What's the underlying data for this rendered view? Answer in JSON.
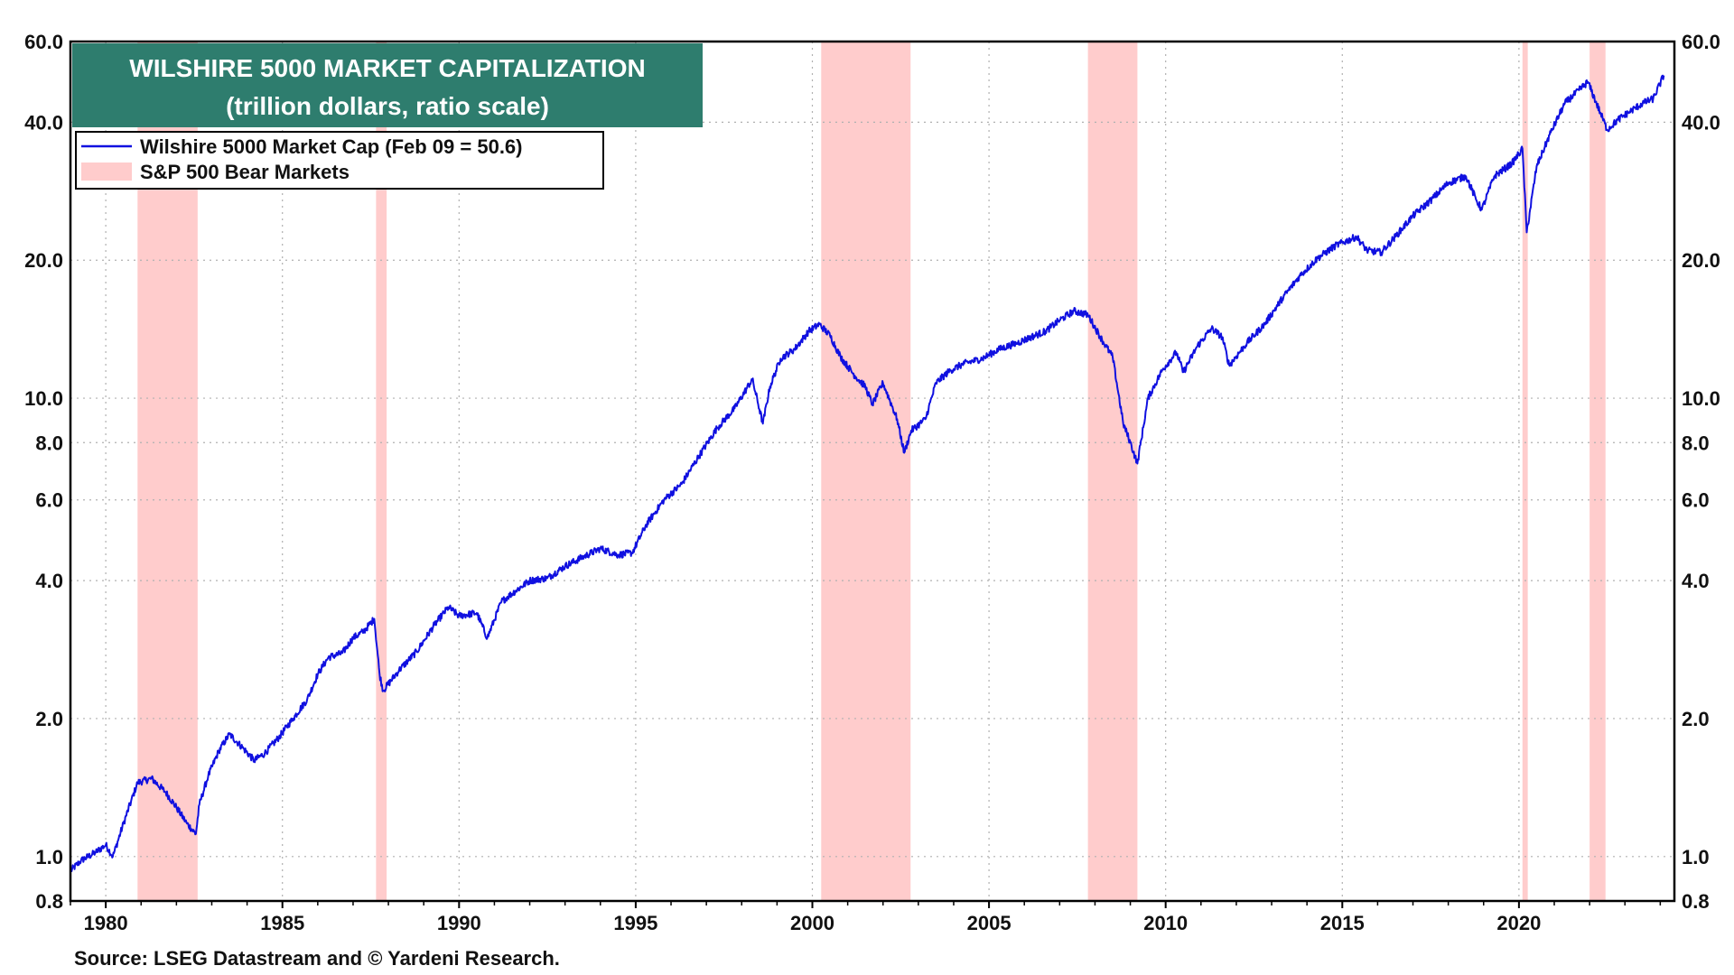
{
  "source": "Source: LSEG Datastream and © Yardeni Research.",
  "colors": {
    "line": "#1010e0",
    "bear": "#ffcccc",
    "title_bg": "#2e7d6e",
    "grid": "#b0b0b0"
  },
  "chart_data": {
    "type": "line",
    "title": "WILSHIRE 5000 MARKET CAPITALIZATION",
    "subtitle": "(trillion dollars, ratio scale)",
    "xlabel": "",
    "ylabel": "",
    "yscale": "log",
    "xlim": [
      1979.0,
      2024.4
    ],
    "ylim": [
      0.8,
      60.0
    ],
    "x_ticks": [
      "1980",
      "1985",
      "1990",
      "1995",
      "2000",
      "2005",
      "2010",
      "2015",
      "2020"
    ],
    "y_ticks": [
      {
        "value": 0.8,
        "label": "0.8"
      },
      {
        "value": 1.0,
        "label": "1.0"
      },
      {
        "value": 2.0,
        "label": "2.0"
      },
      {
        "value": 4.0,
        "label": "4.0"
      },
      {
        "value": 6.0,
        "label": "6.0"
      },
      {
        "value": 8.0,
        "label": "8.0"
      },
      {
        "value": 10.0,
        "label": "10.0"
      },
      {
        "value": 20.0,
        "label": "20.0"
      },
      {
        "value": 40.0,
        "label": "40.0"
      },
      {
        "value": 60.0,
        "label": "60.0"
      }
    ],
    "legend": {
      "placement": "top-left",
      "entries": [
        {
          "label": "Wilshire 5000 Market Cap  (Feb 09 = 50.6)",
          "kind": "line"
        },
        {
          "label": "S&P 500 Bear Markets",
          "kind": "band"
        }
      ]
    },
    "bear_markets": [
      [
        1980.9,
        1982.6
      ],
      [
        1987.65,
        1987.95
      ],
      [
        2000.25,
        2002.78
      ],
      [
        2007.8,
        2009.2
      ],
      [
        2020.1,
        2020.25
      ],
      [
        2022.0,
        2022.45
      ]
    ],
    "series": [
      {
        "name": "Wilshire 5000 Market Cap",
        "x": [
          1979.0,
          1979.3,
          1979.7,
          1980.0,
          1980.2,
          1980.5,
          1980.9,
          1981.3,
          1981.7,
          1982.0,
          1982.3,
          1982.55,
          1982.65,
          1982.9,
          1983.2,
          1983.5,
          1983.9,
          1984.2,
          1984.5,
          1984.9,
          1985.3,
          1985.7,
          1986.0,
          1986.3,
          1986.7,
          1987.0,
          1987.3,
          1987.6,
          1987.75,
          1987.85,
          1988.3,
          1988.8,
          1989.3,
          1989.7,
          1990.0,
          1990.5,
          1990.8,
          1991.2,
          1991.6,
          1992.0,
          1992.5,
          1993.0,
          1993.5,
          1994.0,
          1994.5,
          1994.9,
          1995.3,
          1995.8,
          1996.3,
          1996.8,
          1997.3,
          1997.8,
          1998.3,
          1998.6,
          1998.8,
          1999.1,
          1999.5,
          1999.9,
          2000.2,
          2000.5,
          2000.8,
          2001.2,
          2001.5,
          2001.7,
          2002.0,
          2002.4,
          2002.6,
          2002.8,
          2003.2,
          2003.5,
          2003.9,
          2004.3,
          2004.8,
          2005.3,
          2005.8,
          2006.2,
          2006.6,
          2007.0,
          2007.4,
          2007.8,
          2008.2,
          2008.5,
          2008.8,
          2009.0,
          2009.2,
          2009.5,
          2009.9,
          2010.3,
          2010.5,
          2010.9,
          2011.3,
          2011.6,
          2011.8,
          2012.3,
          2012.8,
          2013.3,
          2013.8,
          2014.3,
          2014.8,
          2015.4,
          2015.7,
          2016.1,
          2016.5,
          2017.0,
          2017.5,
          2018.0,
          2018.5,
          2018.8,
          2018.95,
          2019.3,
          2019.8,
          2020.1,
          2020.22,
          2020.5,
          2020.9,
          2021.3,
          2021.7,
          2021.95,
          2022.3,
          2022.5,
          2022.8,
          2023.1,
          2023.5,
          2023.8,
          2024.1
        ],
        "values": [
          0.93,
          0.98,
          1.02,
          1.06,
          1.0,
          1.18,
          1.45,
          1.48,
          1.38,
          1.28,
          1.18,
          1.12,
          1.3,
          1.5,
          1.7,
          1.85,
          1.72,
          1.62,
          1.68,
          1.82,
          2.0,
          2.2,
          2.5,
          2.72,
          2.78,
          3.0,
          3.1,
          3.3,
          2.5,
          2.3,
          2.55,
          2.8,
          3.2,
          3.5,
          3.35,
          3.4,
          3.0,
          3.6,
          3.8,
          4.0,
          4.05,
          4.3,
          4.5,
          4.7,
          4.55,
          4.6,
          5.3,
          6.0,
          6.5,
          7.5,
          8.6,
          9.5,
          11.0,
          8.8,
          10.6,
          12.2,
          12.8,
          14.0,
          14.5,
          13.7,
          12.3,
          11.2,
          10.6,
          9.7,
          10.8,
          9.0,
          7.6,
          8.5,
          9.0,
          10.8,
          11.5,
          11.9,
          12.2,
          12.8,
          13.2,
          13.6,
          14.0,
          14.8,
          15.5,
          15.2,
          13.4,
          12.3,
          8.8,
          8.0,
          7.2,
          10.0,
          11.5,
          12.6,
          11.4,
          13.0,
          14.2,
          13.6,
          11.8,
          13.2,
          14.5,
          16.5,
          18.5,
          20.2,
          21.5,
          22.5,
          21.0,
          20.8,
          22.5,
          25.0,
          27.0,
          29.5,
          30.5,
          27.0,
          25.8,
          30.5,
          32.5,
          35.0,
          23.0,
          32.0,
          38.0,
          44.0,
          47.0,
          49.0,
          42.0,
          38.5,
          40.5,
          42.0,
          44.0,
          45.0,
          50.6
        ]
      }
    ]
  }
}
